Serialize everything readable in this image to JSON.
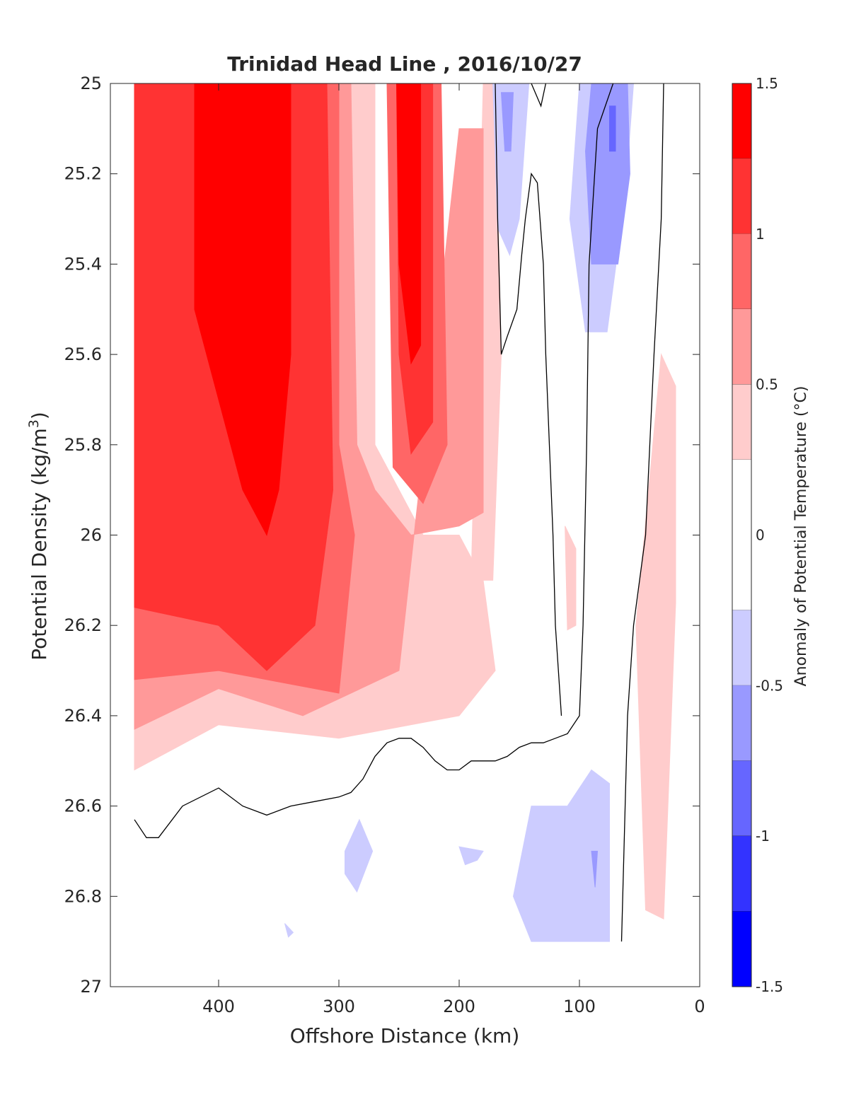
{
  "chart_data": {
    "type": "heatmap",
    "subtype": "filled-contour",
    "title": "Trinidad Head Line , 2016/10/27",
    "xlabel": "Offshore Distance (km)",
    "ylabel": "Potential Density (kg/m",
    "ylabel_sup": "3",
    "ylabel_close": ")",
    "xlim": [
      490,
      0
    ],
    "x_reversed": true,
    "ylim": [
      25,
      27
    ],
    "y_reversed": true,
    "x_ticks": [
      {
        "value": 400,
        "label": "400"
      },
      {
        "value": 300,
        "label": "300"
      },
      {
        "value": 200,
        "label": "200"
      },
      {
        "value": 100,
        "label": "100"
      },
      {
        "value": 0,
        "label": "0"
      }
    ],
    "y_ticks": [
      {
        "value": 25,
        "label": "25"
      },
      {
        "value": 25.2,
        "label": "25.2"
      },
      {
        "value": 25.4,
        "label": "25.4"
      },
      {
        "value": 25.6,
        "label": "25.6"
      },
      {
        "value": 25.8,
        "label": "25.8"
      },
      {
        "value": 26,
        "label": "26"
      },
      {
        "value": 26.2,
        "label": "26.2"
      },
      {
        "value": 26.4,
        "label": "26.4"
      },
      {
        "value": 26.6,
        "label": "26.6"
      },
      {
        "value": 26.8,
        "label": "26.8"
      },
      {
        "value": 27,
        "label": "27"
      }
    ],
    "colorbar": {
      "label": "Anomaly of Potential Temperature (°C)",
      "range": [
        -1.5,
        1.5
      ],
      "levels": [
        {
          "from": 1.25,
          "to": 1.5,
          "color": "#ff0000"
        },
        {
          "from": 1.0,
          "to": 1.25,
          "color": "#ff3333"
        },
        {
          "from": 0.75,
          "to": 1.0,
          "color": "#ff6666"
        },
        {
          "from": 0.5,
          "to": 0.75,
          "color": "#ff9999"
        },
        {
          "from": 0.25,
          "to": 0.5,
          "color": "#ffcccc"
        },
        {
          "from": -0.25,
          "to": 0.25,
          "color": "#ffffff"
        },
        {
          "from": -0.5,
          "to": -0.25,
          "color": "#ccccff"
        },
        {
          "from": -0.75,
          "to": -0.5,
          "color": "#9999ff"
        },
        {
          "from": -1.0,
          "to": -0.75,
          "color": "#6666ff"
        },
        {
          "from": -1.25,
          "to": -1.0,
          "color": "#3333ff"
        },
        {
          "from": -1.5,
          "to": -1.25,
          "color": "#0000ff"
        }
      ],
      "ticks": [
        {
          "value": 1.5,
          "label": "1.5"
        },
        {
          "value": 1.0,
          "label": "1"
        },
        {
          "value": 0.5,
          "label": "0.5"
        },
        {
          "value": 0.0,
          "label": "0"
        },
        {
          "value": -0.5,
          "label": "-0.5"
        },
        {
          "value": -1.0,
          "label": "-1"
        },
        {
          "value": -1.5,
          "label": "-1.5"
        }
      ]
    },
    "regions": [
      {
        "name": "warm-0p25",
        "level": 0.25,
        "polys": [
          [
            [
              470,
              25
            ],
            [
              270,
              25
            ],
            [
              270,
              25.8
            ],
            [
              230,
              26
            ],
            [
              200,
              26
            ],
            [
              180,
              26.1
            ],
            [
              170,
              26.3
            ],
            [
              200,
              26.4
            ],
            [
              300,
              26.45
            ],
            [
              400,
              26.42
            ],
            [
              470,
              26.52
            ]
          ],
          [
            [
              180,
              25
            ],
            [
              170,
              25
            ],
            [
              165,
              25.6
            ],
            [
              172,
              26.1
            ],
            [
              190,
              26.1
            ]
          ],
          [
            [
              112,
              25.98
            ],
            [
              103,
              26.03
            ],
            [
              103,
              26.2
            ],
            [
              110,
              26.21
            ]
          ],
          [
            [
              32,
              25.6
            ],
            [
              20,
              25.67
            ],
            [
              20,
              26.15
            ],
            [
              30,
              26.85
            ],
            [
              45,
              26.83
            ],
            [
              53,
              26.2
            ]
          ]
        ]
      },
      {
        "name": "warm-0p5",
        "level": 0.5,
        "polys": [
          [
            [
              470,
              25
            ],
            [
              290,
              25
            ],
            [
              285,
              25.8
            ],
            [
              270,
              25.9
            ],
            [
              240,
              26
            ],
            [
              200,
              25.98
            ],
            [
              180,
              25.95
            ],
            [
              180,
              25.1
            ],
            [
              200,
              25.1
            ],
            [
              250,
              26.3
            ],
            [
              330,
              26.4
            ],
            [
              400,
              26.34
            ],
            [
              470,
              26.43
            ]
          ]
        ]
      },
      {
        "name": "warm-0p75",
        "level": 0.75,
        "polys": [
          [
            [
              470,
              25
            ],
            [
              300,
              25
            ],
            [
              300,
              25.8
            ],
            [
              287,
              26.0
            ],
            [
              300,
              26.35
            ],
            [
              400,
              26.3
            ],
            [
              470,
              26.32
            ]
          ],
          [
            [
              260,
              25
            ],
            [
              215,
              25
            ],
            [
              210,
              25.8
            ],
            [
              230,
              25.93
            ],
            [
              255,
              25.85
            ]
          ]
        ]
      },
      {
        "name": "warm-1p0",
        "level": 1.0,
        "polys": [
          [
            [
              470,
              25
            ],
            [
              310,
              25
            ],
            [
              305,
              25.9
            ],
            [
              320,
              26.2
            ],
            [
              360,
              26.3
            ],
            [
              400,
              26.2
            ],
            [
              470,
              26.16
            ]
          ],
          [
            [
              252,
              25
            ],
            [
              222,
              25
            ],
            [
              222,
              25.75
            ],
            [
              240,
              25.82
            ],
            [
              250,
              25.6
            ]
          ]
        ]
      },
      {
        "name": "warm-1p25",
        "level": 1.25,
        "polys": [
          [
            [
              420,
              25
            ],
            [
              340,
              25
            ],
            [
              340,
              25.6
            ],
            [
              350,
              25.9
            ],
            [
              360,
              26.0
            ],
            [
              380,
              25.9
            ],
            [
              420,
              25.5
            ]
          ],
          [
            [
              252,
              25
            ],
            [
              232,
              25
            ],
            [
              232,
              25.58
            ],
            [
              240,
              25.62
            ],
            [
              250,
              25.4
            ]
          ]
        ]
      },
      {
        "name": "cool-0p25",
        "level": -0.25,
        "polys": [
          [
            [
              172,
              25
            ],
            [
              142,
              25
            ],
            [
              150,
              25.3
            ],
            [
              158,
              25.38
            ],
            [
              168,
              25.32
            ]
          ],
          [
            [
              100,
              25
            ],
            [
              55,
              25
            ],
            [
              62,
              25.25
            ],
            [
              77,
              25.55
            ],
            [
              95,
              25.55
            ],
            [
              108,
              25.3
            ]
          ],
          [
            [
              283,
              26.63
            ],
            [
              295,
              26.7
            ],
            [
              295,
              26.75
            ],
            [
              285,
              26.79
            ],
            [
              272,
              26.7
            ]
          ],
          [
            [
              200,
              26.69
            ],
            [
              180,
              26.7
            ],
            [
              185,
              26.72
            ],
            [
              195,
              26.73
            ]
          ],
          [
            [
              345,
              26.86
            ],
            [
              338,
              26.88
            ],
            [
              342,
              26.89
            ]
          ],
          [
            [
              90,
              26.52
            ],
            [
              75,
              26.55
            ],
            [
              75,
              26.9
            ],
            [
              140,
              26.9
            ],
            [
              155,
              26.8
            ],
            [
              140,
              26.6
            ],
            [
              110,
              26.6
            ]
          ]
        ]
      },
      {
        "name": "cool-0p5",
        "level": -0.5,
        "polys": [
          [
            [
              165,
              25.02
            ],
            [
              155,
              25.02
            ],
            [
              157,
              25.15
            ],
            [
              162,
              25.15
            ]
          ],
          [
            [
              90,
              25.0
            ],
            [
              60,
              25.0
            ],
            [
              58,
              25.2
            ],
            [
              68,
              25.4
            ],
            [
              90,
              25.4
            ],
            [
              95,
              25.15
            ]
          ],
          [
            [
              85,
              26.7
            ],
            [
              90,
              26.7
            ],
            [
              87,
              26.78
            ]
          ]
        ]
      },
      {
        "name": "cool-0p75",
        "level": -0.75,
        "polys": [
          [
            [
              75,
              25.05
            ],
            [
              70,
              25.05
            ],
            [
              70,
              25.15
            ],
            [
              75,
              25.15
            ]
          ]
        ]
      }
    ],
    "zero_contours": [
      [
        [
          470,
          26.63
        ],
        [
          460,
          26.67
        ],
        [
          450,
          26.67
        ],
        [
          430,
          26.6
        ],
        [
          400,
          26.56
        ],
        [
          380,
          26.6
        ],
        [
          360,
          26.62
        ],
        [
          340,
          26.6
        ],
        [
          320,
          26.59
        ],
        [
          300,
          26.58
        ],
        [
          290,
          26.57
        ],
        [
          280,
          26.54
        ],
        [
          270,
          26.49
        ],
        [
          260,
          26.46
        ],
        [
          250,
          26.45
        ],
        [
          240,
          26.45
        ],
        [
          230,
          26.47
        ],
        [
          220,
          26.5
        ],
        [
          210,
          26.52
        ],
        [
          200,
          26.52
        ],
        [
          190,
          26.5
        ],
        [
          180,
          26.5
        ],
        [
          170,
          26.5
        ],
        [
          160,
          26.49
        ],
        [
          150,
          26.47
        ],
        [
          140,
          26.46
        ],
        [
          130,
          26.46
        ],
        [
          120,
          26.45
        ],
        [
          110,
          26.44
        ],
        [
          100,
          26.4
        ],
        [
          97,
          26.2
        ],
        [
          94,
          25.8
        ],
        [
          92,
          25.4
        ],
        [
          85,
          25.1
        ],
        [
          72,
          25.0
        ]
      ],
      [
        [
          170,
          25
        ],
        [
          168,
          25.3
        ],
        [
          165,
          25.6
        ],
        [
          160,
          25.56
        ],
        [
          152,
          25.5
        ],
        [
          148,
          25.38
        ],
        [
          145,
          25.3
        ],
        [
          140,
          25.2
        ],
        [
          135,
          25.22
        ],
        [
          130,
          25.4
        ],
        [
          128,
          25.6
        ],
        [
          125,
          25.8
        ],
        [
          122,
          26.0
        ],
        [
          120,
          26.2
        ],
        [
          115,
          26.4
        ]
      ],
      [
        [
          140,
          25
        ],
        [
          132,
          25.05
        ],
        [
          128,
          25.0
        ]
      ],
      [
        [
          30,
          25
        ],
        [
          32,
          25.3
        ],
        [
          38,
          25.6
        ],
        [
          45,
          26.0
        ],
        [
          55,
          26.2
        ],
        [
          60,
          26.4
        ],
        [
          62,
          26.6
        ],
        [
          64,
          26.8
        ],
        [
          65,
          26.9
        ]
      ]
    ]
  }
}
